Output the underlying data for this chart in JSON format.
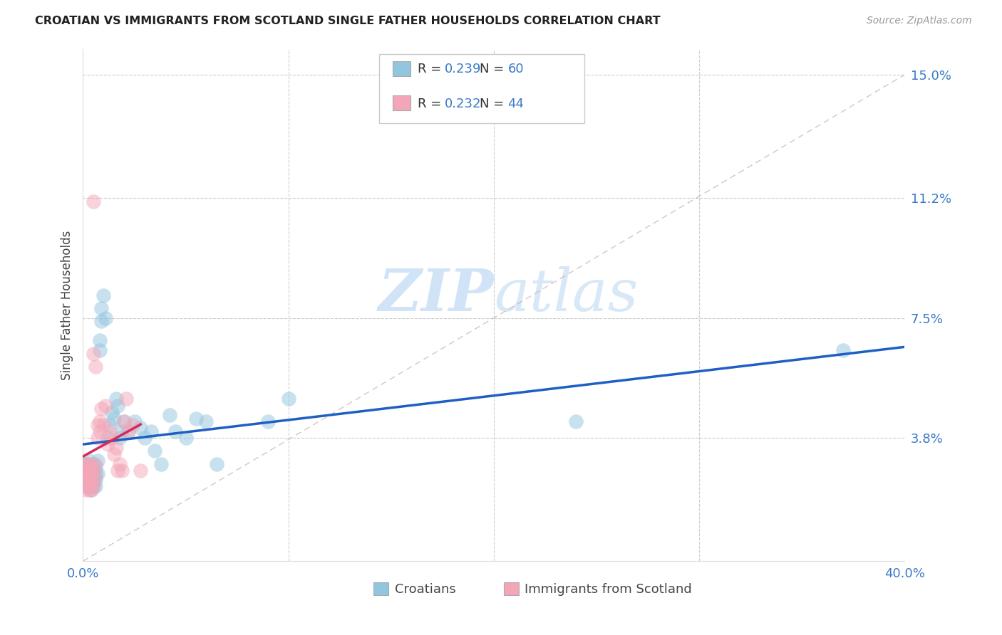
{
  "title": "CROATIAN VS IMMIGRANTS FROM SCOTLAND SINGLE FATHER HOUSEHOLDS CORRELATION CHART",
  "source": "Source: ZipAtlas.com",
  "ylabel": "Single Father Households",
  "xlim": [
    0,
    0.4
  ],
  "ylim": [
    0,
    0.158
  ],
  "xtick_vals": [
    0.0,
    0.1,
    0.2,
    0.3,
    0.4
  ],
  "xtick_labels": [
    "0.0%",
    "",
    "",
    "",
    "40.0%"
  ],
  "ytick_vals": [
    0.038,
    0.075,
    0.112,
    0.15
  ],
  "ytick_labels": [
    "3.8%",
    "7.5%",
    "11.2%",
    "15.0%"
  ],
  "blue_color": "#92c5de",
  "pink_color": "#f4a6b8",
  "blue_line_color": "#1f5fc4",
  "pink_line_color": "#d42b5a",
  "diag_color": "#ccaaaa",
  "grid_color": "#cccccc",
  "background_color": "#ffffff",
  "legend_label_croatians": "Croatians",
  "legend_label_scotland": "Immigrants from Scotland",
  "croatians_R": "0.239",
  "croatians_N": "60",
  "scotland_R": "0.232",
  "scotland_N": "44",
  "watermark_color": "#cce0f5",
  "croatians_x": [
    0.001,
    0.001,
    0.001,
    0.001,
    0.002,
    0.002,
    0.002,
    0.002,
    0.002,
    0.003,
    0.003,
    0.003,
    0.003,
    0.004,
    0.004,
    0.004,
    0.004,
    0.004,
    0.005,
    0.005,
    0.005,
    0.005,
    0.006,
    0.006,
    0.006,
    0.006,
    0.007,
    0.007,
    0.008,
    0.008,
    0.009,
    0.009,
    0.01,
    0.011,
    0.012,
    0.013,
    0.014,
    0.015,
    0.016,
    0.017,
    0.018,
    0.019,
    0.02,
    0.022,
    0.025,
    0.028,
    0.03,
    0.033,
    0.035,
    0.038,
    0.042,
    0.045,
    0.05,
    0.055,
    0.06,
    0.065,
    0.09,
    0.1,
    0.24,
    0.37
  ],
  "croatians_y": [
    0.028,
    0.03,
    0.024,
    0.026,
    0.03,
    0.025,
    0.027,
    0.023,
    0.029,
    0.031,
    0.027,
    0.025,
    0.023,
    0.029,
    0.027,
    0.025,
    0.022,
    0.028,
    0.03,
    0.025,
    0.023,
    0.027,
    0.029,
    0.025,
    0.027,
    0.023,
    0.031,
    0.027,
    0.065,
    0.068,
    0.078,
    0.074,
    0.082,
    0.075,
    0.038,
    0.042,
    0.046,
    0.044,
    0.05,
    0.048,
    0.038,
    0.04,
    0.043,
    0.04,
    0.043,
    0.041,
    0.038,
    0.04,
    0.034,
    0.03,
    0.045,
    0.04,
    0.038,
    0.044,
    0.043,
    0.03,
    0.043,
    0.05,
    0.043,
    0.065
  ],
  "scotland_x": [
    0.001,
    0.001,
    0.001,
    0.001,
    0.001,
    0.002,
    0.002,
    0.002,
    0.002,
    0.003,
    0.003,
    0.003,
    0.003,
    0.004,
    0.004,
    0.004,
    0.004,
    0.005,
    0.005,
    0.005,
    0.005,
    0.006,
    0.006,
    0.006,
    0.007,
    0.007,
    0.008,
    0.008,
    0.009,
    0.01,
    0.011,
    0.012,
    0.013,
    0.014,
    0.015,
    0.016,
    0.017,
    0.018,
    0.019,
    0.02,
    0.021,
    0.022,
    0.024,
    0.028
  ],
  "scotland_y": [
    0.028,
    0.025,
    0.022,
    0.03,
    0.026,
    0.027,
    0.03,
    0.023,
    0.025,
    0.03,
    0.025,
    0.022,
    0.027,
    0.029,
    0.024,
    0.022,
    0.026,
    0.111,
    0.064,
    0.028,
    0.023,
    0.06,
    0.03,
    0.026,
    0.042,
    0.038,
    0.04,
    0.043,
    0.047,
    0.042,
    0.048,
    0.036,
    0.04,
    0.038,
    0.033,
    0.035,
    0.028,
    0.03,
    0.028,
    0.043,
    0.05,
    0.04,
    0.042,
    0.028
  ]
}
